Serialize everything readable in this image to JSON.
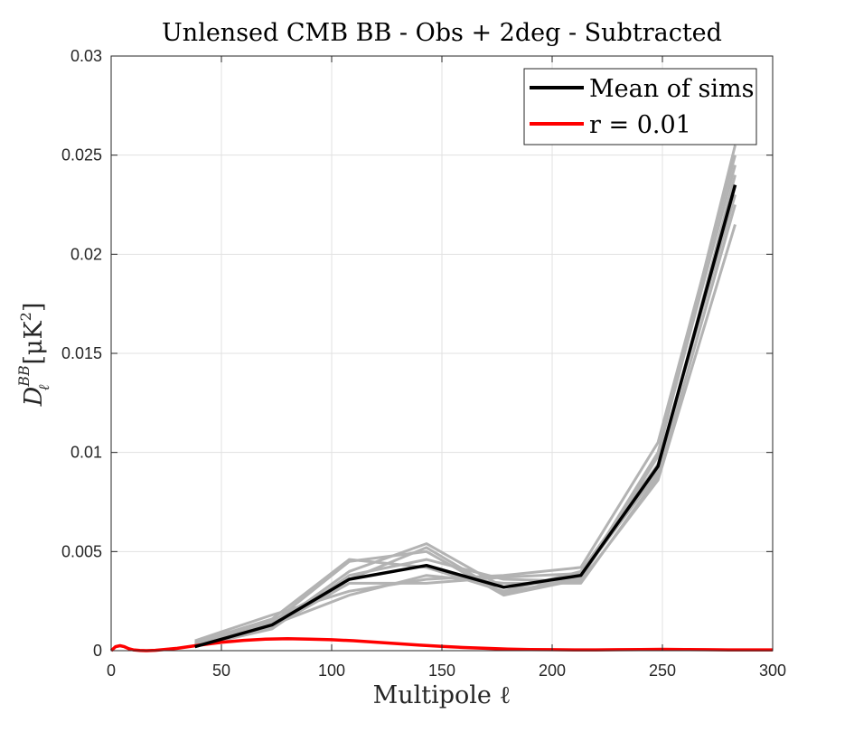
{
  "chart_data": {
    "type": "line",
    "title": "Unlensed CMB BB - Obs + 2deg - Subtracted",
    "xlabel": "Multipole ℓ",
    "ylabel": {
      "base": "D",
      "sub": "ℓ",
      "sup": "BB",
      "unit_open": "[μK",
      "unit_sup": "2",
      "unit_close": "]"
    },
    "xlim": [
      0,
      300
    ],
    "ylim": [
      0,
      0.03
    ],
    "xticks": [
      0,
      50,
      100,
      150,
      200,
      250,
      300
    ],
    "yticks": [
      0,
      0.005,
      0.01,
      0.015,
      0.02,
      0.025,
      0.03
    ],
    "xtick_labels": [
      "0",
      "50",
      "100",
      "150",
      "200",
      "250",
      "300"
    ],
    "ytick_labels": [
      "0",
      "0.005",
      "0.01",
      "0.015",
      "0.02",
      "0.025",
      "0.03"
    ],
    "grid": true,
    "legend_position": "top-right",
    "legend": [
      {
        "label": "Mean of sims",
        "color": "#000000"
      },
      {
        "label": "r = 0.01",
        "color": "#ff0000"
      }
    ],
    "sims": {
      "color": "#b3b3b3",
      "x": [
        38,
        73,
        108,
        143,
        178,
        213,
        248,
        283
      ],
      "runs": [
        [
          0.0004,
          0.0014,
          0.0045,
          0.005,
          0.0028,
          0.0036,
          0.0098,
          0.0255
        ],
        [
          0.0003,
          0.0012,
          0.004,
          0.0054,
          0.0032,
          0.0038,
          0.009,
          0.024
        ],
        [
          0.0005,
          0.0018,
          0.003,
          0.0036,
          0.0038,
          0.0042,
          0.0105,
          0.025
        ],
        [
          0.0002,
          0.0011,
          0.0038,
          0.0046,
          0.0036,
          0.0035,
          0.0086,
          0.0215
        ],
        [
          0.0004,
          0.0016,
          0.0046,
          0.0042,
          0.003,
          0.004,
          0.0094,
          0.023
        ],
        [
          0.0003,
          0.0013,
          0.0028,
          0.0038,
          0.0034,
          0.0034,
          0.0088,
          0.0225
        ],
        [
          0.0004,
          0.0015,
          0.0036,
          0.0052,
          0.0029,
          0.0037,
          0.01,
          0.0245
        ],
        [
          0.0003,
          0.0012,
          0.0034,
          0.0034,
          0.0037,
          0.0039,
          0.0092,
          0.0235
        ]
      ]
    },
    "series": [
      {
        "name": "Mean of sims",
        "color": "#000000",
        "x": [
          38,
          73,
          108,
          143,
          178,
          213,
          248,
          283
        ],
        "values": [
          0.0002,
          0.0013,
          0.0036,
          0.0043,
          0.0032,
          0.0038,
          0.0093,
          0.0235
        ]
      },
      {
        "name": "r = 0.01",
        "color": "#ff0000",
        "x": [
          0,
          2,
          4,
          6,
          8,
          10,
          13,
          16,
          20,
          30,
          40,
          50,
          60,
          70,
          80,
          90,
          100,
          110,
          120,
          130,
          140,
          150,
          160,
          170,
          180,
          190,
          200,
          210,
          220,
          230,
          240,
          250,
          260,
          270,
          280,
          290,
          300
        ],
        "values": [
          0.0,
          0.0002,
          0.00025,
          0.0002,
          0.0001,
          4e-05,
          1e-05,
          0.0,
          2e-05,
          0.00012,
          0.00028,
          0.00042,
          0.00052,
          0.00058,
          0.0006,
          0.00058,
          0.00055,
          0.0005,
          0.00043,
          0.00035,
          0.00028,
          0.00022,
          0.00016,
          0.00012,
          8e-05,
          6e-05,
          5e-05,
          4e-05,
          4e-05,
          5e-05,
          6e-05,
          7e-05,
          6e-05,
          5e-05,
          4e-05,
          4e-05,
          4e-05
        ]
      }
    ]
  }
}
